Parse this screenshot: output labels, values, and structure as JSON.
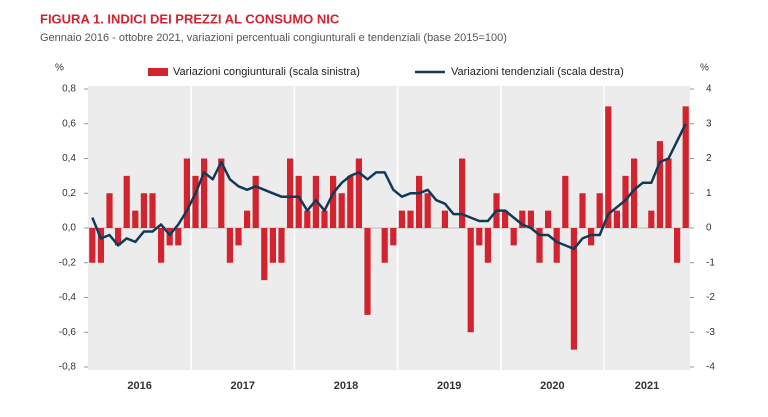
{
  "chart_data": {
    "type": "bar-line",
    "title": "FIGURA 1. INDICI DEI PREZZI AL CONSUMO NIC",
    "subtitle": "Gennaio 2016 - ottobre 2021, variazioni percentuali congiunturali e tendenziali (base 2015=100)",
    "y_unit": "%",
    "y2_unit": "%",
    "categories": [
      null,
      null,
      null,
      null,
      null,
      null,
      null,
      null,
      null,
      null,
      null,
      null,
      null,
      null,
      null,
      null,
      null,
      null,
      null,
      null,
      null,
      null,
      null,
      null,
      null,
      null,
      null,
      null,
      null,
      null,
      null,
      null,
      null,
      null,
      null,
      null,
      null,
      null,
      null,
      null,
      null,
      null,
      null,
      null,
      null,
      null,
      null,
      null,
      null,
      null,
      null,
      null,
      null,
      null,
      null,
      null,
      null,
      null,
      null,
      null,
      null,
      null,
      null,
      null,
      null,
      null,
      null,
      null,
      null,
      null
    ],
    "x_groups": [
      "2016",
      "2017",
      "2018",
      "2019",
      "2020",
      "2021"
    ],
    "series": [
      {
        "name": "Variazioni congiunturali (scala sinistra)",
        "type": "bar",
        "color": "#d2232f",
        "values": [
          -0.2,
          -0.2,
          0.2,
          -0.1,
          0.3,
          0.1,
          0.2,
          0.2,
          -0.2,
          -0.1,
          -0.1,
          0.4,
          0.3,
          0.4,
          0.0,
          0.4,
          -0.2,
          -0.1,
          0.1,
          0.3,
          -0.3,
          -0.2,
          -0.2,
          0.4,
          0.3,
          0.1,
          0.3,
          0.1,
          0.3,
          0.2,
          0.3,
          0.4,
          -0.5,
          0.0,
          -0.2,
          -0.1,
          0.1,
          0.1,
          0.3,
          0.2,
          0.0,
          0.1,
          0.0,
          0.4,
          -0.6,
          -0.1,
          -0.2,
          0.2,
          0.1,
          -0.1,
          0.1,
          0.1,
          -0.2,
          0.1,
          -0.2,
          0.3,
          -0.7,
          0.2,
          -0.1,
          0.2,
          0.7,
          0.1,
          0.3,
          0.4,
          0.0,
          0.1,
          0.5,
          0.4,
          -0.2,
          0.7
        ]
      },
      {
        "name": "Variazioni tendenziali (scala destra)",
        "type": "line",
        "axis": "y2",
        "color": "#123a57",
        "values": [
          0.3,
          -0.3,
          -0.2,
          -0.5,
          -0.3,
          -0.4,
          -0.1,
          -0.1,
          0.1,
          -0.2,
          0.1,
          0.5,
          1.0,
          1.6,
          1.4,
          1.9,
          1.4,
          1.2,
          1.1,
          1.2,
          1.1,
          1.0,
          0.9,
          0.9,
          0.9,
          0.5,
          0.8,
          0.5,
          1.0,
          1.3,
          1.5,
          1.6,
          1.4,
          1.6,
          1.6,
          1.1,
          0.9,
          1.0,
          1.0,
          1.1,
          0.8,
          0.7,
          0.4,
          0.4,
          0.3,
          0.2,
          0.2,
          0.5,
          0.5,
          0.3,
          0.1,
          0.0,
          -0.2,
          -0.2,
          -0.4,
          -0.5,
          -0.6,
          -0.3,
          -0.2,
          -0.2,
          0.4,
          0.6,
          0.8,
          1.1,
          1.3,
          1.3,
          1.9,
          2.0,
          2.5,
          3.0
        ]
      }
    ],
    "ylim": [
      -0.8,
      0.8
    ],
    "yticks": [
      {
        "value": -0.8,
        "label": "-0,8"
      },
      {
        "value": -0.6,
        "label": "-0,6"
      },
      {
        "value": -0.4,
        "label": "-0,4"
      },
      {
        "value": -0.2,
        "label": "-0,2"
      },
      {
        "value": 0,
        "label": "0,0"
      },
      {
        "value": 0.2,
        "label": "0,2"
      },
      {
        "value": 0.4,
        "label": "0,4"
      },
      {
        "value": 0.6,
        "label": "0,6"
      },
      {
        "value": 0.8,
        "label": "0,8"
      }
    ],
    "y2lim": [
      -4,
      4
    ],
    "y2ticks": [
      -4,
      -3,
      -2,
      -1,
      0,
      1,
      2,
      3,
      4
    ]
  }
}
